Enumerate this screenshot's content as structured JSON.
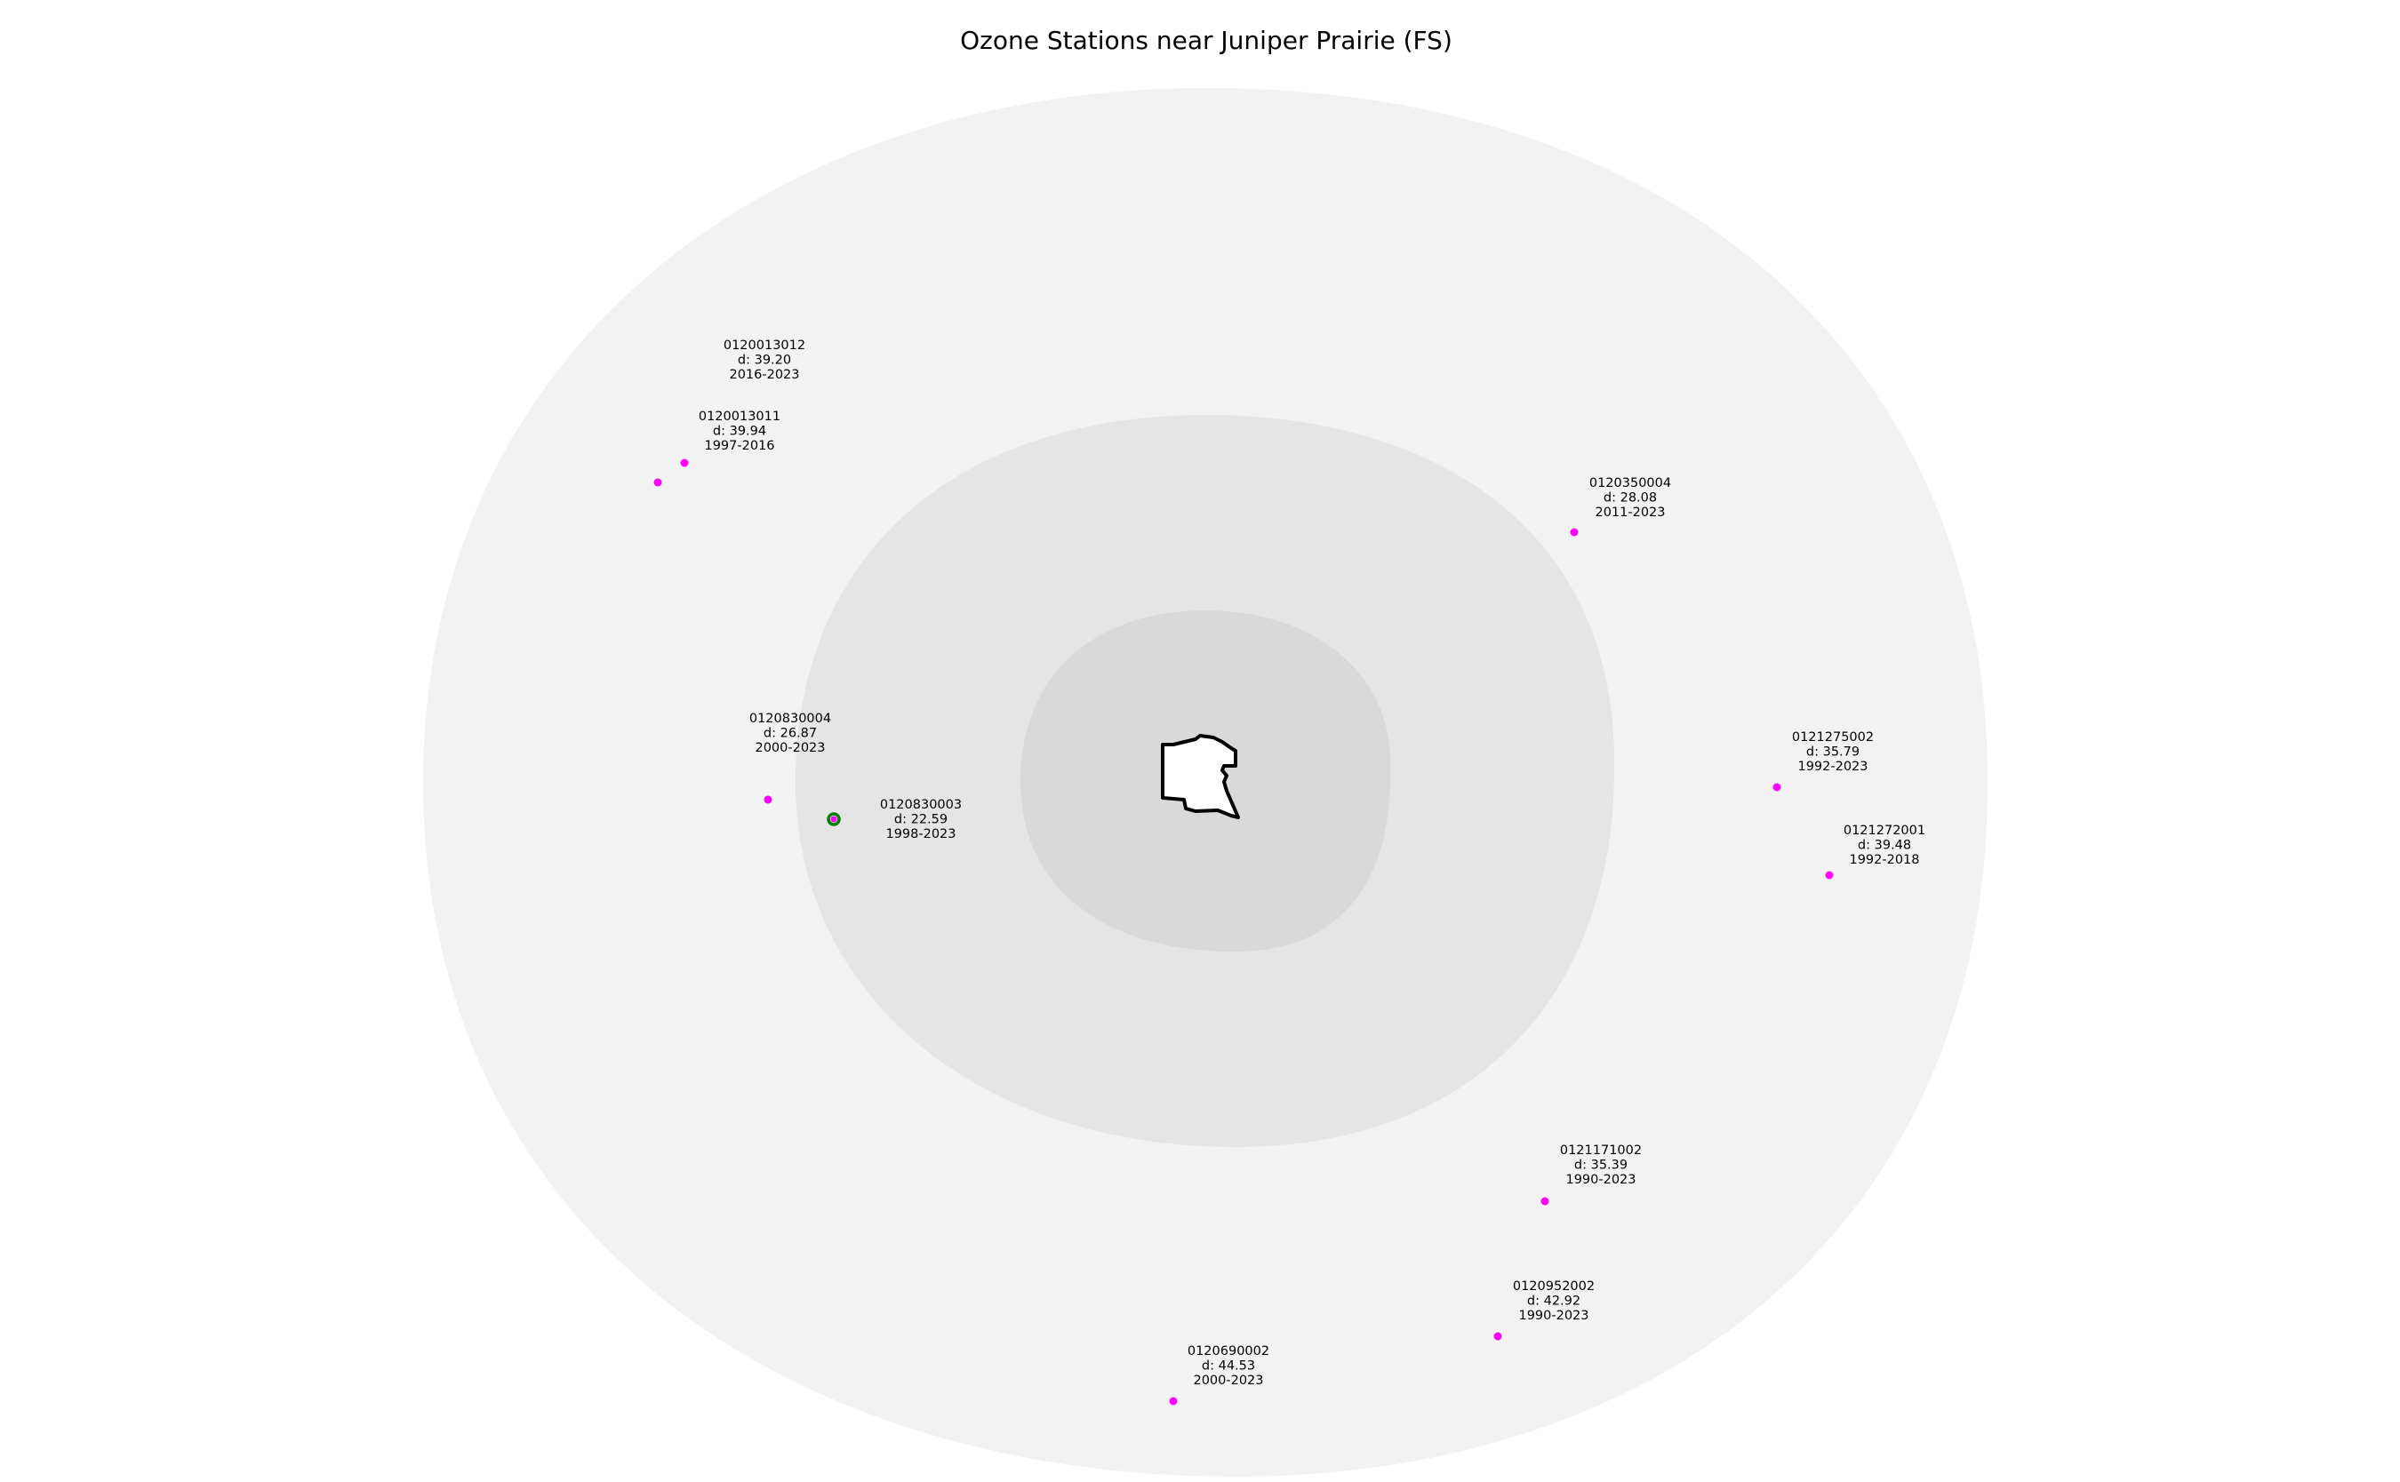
{
  "title": "Ozone Stations near Juniper Prairie (FS)",
  "colors": {
    "outer_buffer": "#f2f2f2",
    "middle_buffer": "#e5e5e5",
    "inner_buffer": "#d9d9d9",
    "area_fill": "#ffffff",
    "area_outline": "#000000",
    "station": "#ff00ff",
    "highlight_ring": "#008000"
  },
  "stations": [
    {
      "id": "0120013012",
      "distance": "d: 39.20",
      "years": "2016-2023",
      "highlighted": false
    },
    {
      "id": "0120013011",
      "distance": "d: 39.94",
      "years": "1997-2016",
      "highlighted": false
    },
    {
      "id": "0120350004",
      "distance": "d: 28.08",
      "years": "2011-2023",
      "highlighted": false
    },
    {
      "id": "0120830004",
      "distance": "d: 26.87",
      "years": "2000-2023",
      "highlighted": false
    },
    {
      "id": "0120830003",
      "distance": "d: 22.59",
      "years": "1998-2023",
      "highlighted": true
    },
    {
      "id": "0121275002",
      "distance": "d: 35.79",
      "years": "1992-2023",
      "highlighted": false
    },
    {
      "id": "0121272001",
      "distance": "d: 39.48",
      "years": "1992-2018",
      "highlighted": false
    },
    {
      "id": "0121171002",
      "distance": "d: 35.39",
      "years": "1990-2023",
      "highlighted": false
    },
    {
      "id": "0120952002",
      "distance": "d: 42.92",
      "years": "1990-2023",
      "highlighted": false
    },
    {
      "id": "0120690002",
      "distance": "d: 44.53",
      "years": "2000-2023",
      "highlighted": false
    }
  ]
}
